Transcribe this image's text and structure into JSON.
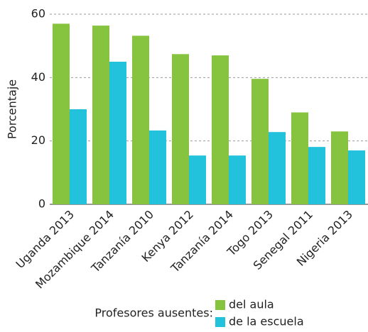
{
  "chart_data": {
    "type": "bar",
    "ylabel": "Porcentaje",
    "categories": [
      "Uganda 2013",
      "Mozambique 2014",
      "Tanzanía 2010",
      "Kenya 2012",
      "Tanzanía 2014",
      "Togo 2013",
      "Senegal 2011",
      "Nigeria 2013"
    ],
    "series": [
      {
        "name": "del aula",
        "color": "#86c440",
        "values": [
          57,
          56.4,
          53.2,
          47.4,
          47,
          39.6,
          29,
          23
        ]
      },
      {
        "name": "de la escuela",
        "color": "#22c1dc",
        "values": [
          30,
          45,
          23.3,
          15.4,
          15.4,
          22.8,
          18.1,
          17
        ]
      }
    ],
    "legend_title": "Profesores ausentes:",
    "ylim": [
      0,
      60
    ],
    "yticks": [
      0,
      20,
      40,
      60
    ],
    "grid": true
  }
}
